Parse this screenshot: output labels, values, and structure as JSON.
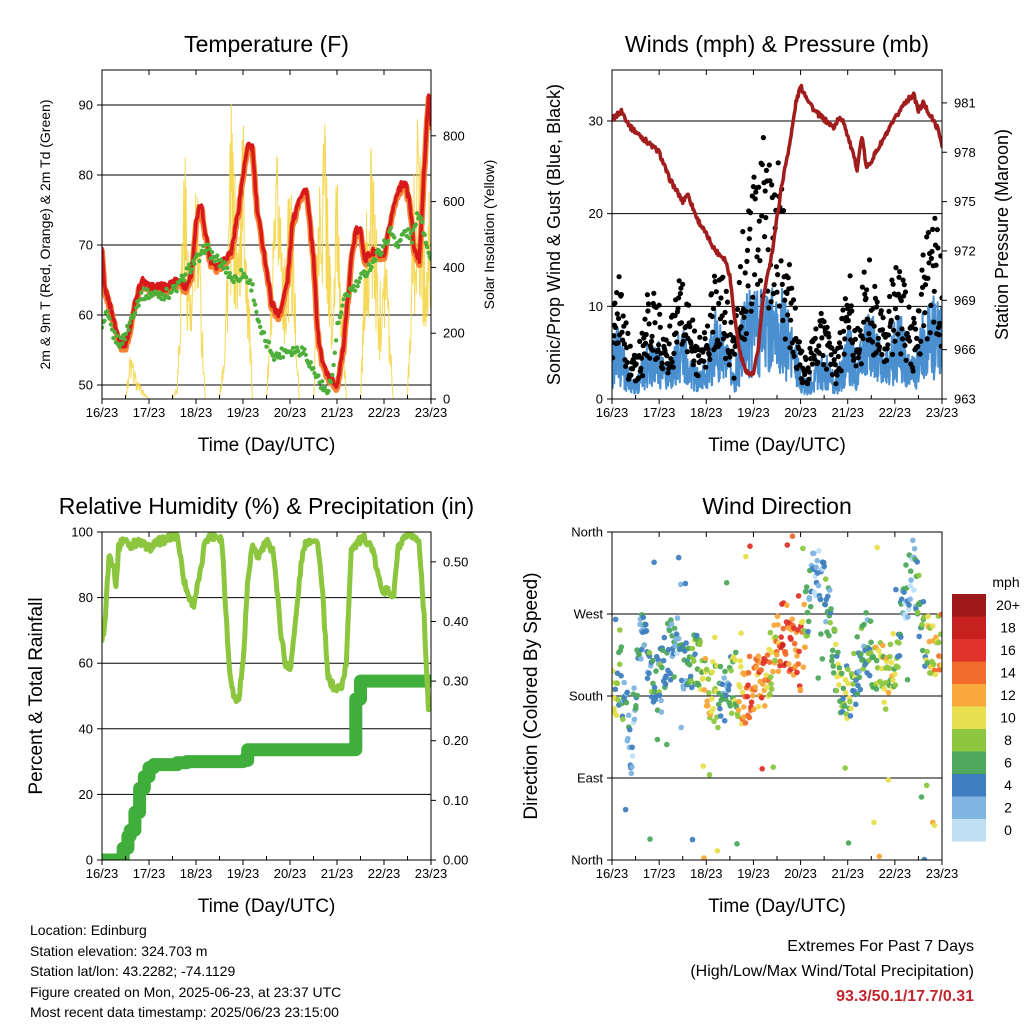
{
  "time_labels": [
    "16/23",
    "17/23",
    "18/23",
    "19/23",
    "20/23",
    "21/23",
    "22/23",
    "23/23"
  ],
  "colors": {
    "temp_2m": "#d7191c",
    "temp_9m": "#f58231",
    "dewpoint": "#4daf3a",
    "solar": "#f5d547",
    "wind_sonic": "#4a90d0",
    "gust": "#000000",
    "pressure": "#a11d1d",
    "rh": "#8cc63f",
    "precip": "#3fae3a"
  },
  "info": {
    "location": "Location: Edinburg",
    "elevation": "Station elevation: 324.703 m",
    "latlon": "Station lat/lon: 43.2282; -74.1129",
    "created": "Figure created on Mon, 2025-06-23, at 23:37 UTC",
    "recent": "Most recent data timestamp: 2025/06/23 23:15:00"
  },
  "extremes": {
    "title": "Extremes For Past 7 Days",
    "subtitle": "(High/Low/Max Wind/Total Precipitation)",
    "values": "93.3/50.1/17.7/0.31"
  },
  "chart_data": [
    {
      "type": "line",
      "title": "Temperature (F)",
      "xlabel": "Time (Day/UTC)",
      "ylabel": "2m & 9m T (Red, Orange) & 2m Td (Green)",
      "y2label": "Solar Insolation (Yellow)",
      "xlim": [
        0,
        7
      ],
      "ylim": [
        48,
        95
      ],
      "y2lim": [
        0,
        1000
      ],
      "yticks": [
        50,
        60,
        70,
        80,
        90
      ],
      "y2ticks": [
        0,
        200,
        400,
        600,
        800
      ],
      "grid": true,
      "series": [
        {
          "key": "temp",
          "x": [
            0,
            0.05,
            0.15,
            0.3,
            0.4,
            0.5,
            0.6,
            0.7,
            0.85,
            1.0,
            1.2,
            1.4,
            1.6,
            1.8,
            1.9,
            2.0,
            2.1,
            2.2,
            2.3,
            2.45,
            2.6,
            2.75,
            2.9,
            3.0,
            3.1,
            3.2,
            3.3,
            3.45,
            3.6,
            3.75,
            3.85,
            3.95,
            4.05,
            4.2,
            4.35,
            4.5,
            4.55,
            4.6,
            4.7,
            4.85,
            5.0,
            5.15,
            5.3,
            5.4,
            5.5,
            5.6,
            5.75,
            5.85,
            6.0,
            6.15,
            6.3,
            6.45,
            6.55,
            6.65,
            6.75,
            6.85,
            6.95,
            7.0
          ],
          "y": [
            69,
            64,
            62,
            58,
            56,
            56,
            58,
            62,
            65,
            64,
            64,
            64,
            65,
            64,
            66,
            73,
            76,
            72,
            68,
            67,
            68,
            69,
            75,
            80,
            84,
            84,
            75,
            69,
            62,
            60,
            62,
            65,
            73,
            77,
            78,
            68,
            62,
            57,
            53,
            51,
            50,
            56,
            68,
            72,
            72,
            68,
            69,
            69,
            68,
            74,
            78,
            79,
            76,
            69,
            68,
            80,
            92,
            87
          ]
        },
        {
          "key": "dewpoint",
          "x": [
            0,
            0.1,
            0.25,
            0.4,
            0.55,
            0.7,
            0.85,
            1.0,
            1.2,
            1.4,
            1.6,
            1.8,
            2.0,
            2.1,
            2.2,
            2.4,
            2.6,
            2.8,
            3.0,
            3.2,
            3.35,
            3.5,
            3.7,
            3.9,
            4.1,
            4.3,
            4.5,
            4.6,
            4.75,
            4.9,
            5.0,
            5.2,
            5.4,
            5.6,
            5.8,
            6.0,
            6.15,
            6.3,
            6.45,
            6.6,
            6.75,
            6.85,
            7.0
          ],
          "y": [
            58,
            60,
            57,
            56,
            58,
            61,
            63,
            63,
            63,
            63,
            64,
            66,
            68,
            68,
            70,
            68,
            67,
            65,
            66,
            64,
            58,
            56,
            54,
            55,
            55,
            55,
            52,
            51,
            49,
            51,
            58,
            63,
            64,
            66,
            68,
            70,
            72,
            70,
            72,
            71,
            75,
            72,
            68
          ]
        },
        {
          "key": "solar",
          "x": [
            0,
            0.3,
            0.5,
            0.6,
            0.75,
            0.9,
            1.0,
            1.3,
            1.5,
            1.6,
            1.75,
            1.9,
            2.0,
            2.2,
            2.3,
            2.5,
            2.6,
            2.75,
            2.9,
            3.0,
            3.2,
            3.3,
            3.5,
            3.6,
            3.75,
            3.9,
            4.0,
            4.2,
            4.3,
            4.5,
            4.6,
            4.75,
            4.9,
            5.0,
            5.2,
            5.3,
            5.5,
            5.6,
            5.75,
            5.9,
            6.0,
            6.2,
            6.3,
            6.5,
            6.6,
            6.75,
            6.9,
            7.0
          ],
          "y": [
            0,
            0,
            0,
            150,
            60,
            20,
            0,
            0,
            0,
            50,
            850,
            300,
            800,
            0,
            0,
            0,
            200,
            900,
            500,
            950,
            0,
            0,
            0,
            350,
            850,
            400,
            750,
            0,
            0,
            0,
            700,
            920,
            250,
            800,
            0,
            0,
            0,
            500,
            850,
            300,
            650,
            0,
            0,
            0,
            600,
            940,
            400,
            820
          ]
        }
      ]
    },
    {
      "type": "scatter",
      "title": "Winds (mph) & Pressure (mb)",
      "xlabel": "Time (Day/UTC)",
      "ylabel": "Sonic/Prop Wind & Gust (Blue, Black)",
      "y2label": "Station Pressure (Maroon)",
      "xlim": [
        0,
        7
      ],
      "ylim": [
        0,
        35.5
      ],
      "y2lim": [
        963,
        983
      ],
      "yticks": [
        0,
        10,
        20,
        30
      ],
      "y2ticks": [
        963,
        966,
        969,
        972,
        975,
        978,
        981
      ],
      "grid": true,
      "series": [
        {
          "key": "pressure",
          "x": [
            0,
            0.2,
            0.4,
            0.6,
            0.8,
            1.0,
            1.2,
            1.4,
            1.5,
            1.6,
            1.8,
            2.0,
            2.1,
            2.2,
            2.4,
            2.5,
            2.6,
            2.7,
            2.8,
            2.9,
            3.0,
            3.1,
            3.2,
            3.4,
            3.6,
            3.8,
            3.9,
            4.0,
            4.2,
            4.3,
            4.5,
            4.7,
            4.8,
            4.9,
            5.0,
            5.2,
            5.3,
            5.4,
            5.5,
            5.6,
            5.7,
            5.9,
            6.0,
            6.2,
            6.4,
            6.5,
            6.6,
            6.8,
            6.9,
            7.0
          ],
          "y": [
            980,
            980.5,
            979.5,
            979,
            978.5,
            978,
            976.5,
            975.5,
            975,
            975.5,
            974,
            973,
            972.5,
            972,
            971.5,
            970.5,
            968,
            966,
            965,
            964.5,
            964.5,
            966,
            969,
            972,
            976,
            979,
            981,
            982,
            981,
            980.5,
            980,
            979.5,
            980,
            980,
            979,
            977,
            979,
            977,
            977.5,
            978,
            978.5,
            979.5,
            980,
            981,
            981.5,
            980.5,
            981,
            980,
            979.5,
            978.5
          ]
        },
        {
          "key": "wind_env",
          "x": [
            0,
            0.1,
            0.2,
            0.35,
            0.5,
            0.65,
            0.8,
            1.0,
            1.15,
            1.3,
            1.45,
            1.6,
            1.8,
            2.0,
            2.2,
            2.4,
            2.6,
            2.8,
            3.0,
            3.1,
            3.2,
            3.3,
            3.4,
            3.5,
            3.6,
            3.8,
            4.0,
            4.15,
            4.3,
            4.45,
            4.6,
            4.75,
            4.9,
            5.0,
            5.1,
            5.2,
            5.35,
            5.5,
            5.65,
            5.8,
            5.95,
            6.1,
            6.25,
            6.4,
            6.55,
            6.7,
            6.85,
            7.0
          ],
          "y": [
            5,
            8,
            6,
            3,
            2,
            4,
            7,
            6,
            3,
            5,
            8,
            6,
            3,
            4,
            9,
            6,
            3,
            10,
            12,
            11,
            13,
            11,
            12,
            10,
            11,
            8,
            3,
            2,
            4,
            5,
            4,
            2,
            5,
            8,
            6,
            4,
            8,
            9,
            6,
            5,
            7,
            9,
            6,
            4,
            8,
            11,
            10,
            9
          ]
        },
        {
          "key": "gust_env",
          "x": [
            0,
            0.1,
            0.2,
            0.35,
            0.5,
            0.65,
            0.8,
            1.0,
            1.15,
            1.3,
            1.45,
            1.6,
            1.8,
            2.0,
            2.2,
            2.4,
            2.6,
            2.8,
            3.0,
            3.1,
            3.2,
            3.3,
            3.4,
            3.5,
            3.6,
            3.8,
            4.0,
            4.15,
            4.3,
            4.45,
            4.6,
            4.75,
            4.9,
            5.0,
            5.1,
            5.2,
            5.35,
            5.5,
            5.65,
            5.8,
            5.95,
            6.1,
            6.25,
            6.4,
            6.55,
            6.7,
            6.85,
            7.0
          ],
          "y": [
            11,
            16,
            12,
            6,
            4,
            7,
            12,
            10,
            6,
            9,
            13,
            11,
            6,
            7,
            15,
            12,
            6,
            18,
            22,
            24,
            26,
            25,
            27,
            24,
            22,
            12,
            5,
            4,
            7,
            9,
            8,
            4,
            9,
            14,
            11,
            7,
            13,
            15,
            10,
            8,
            12,
            14,
            10,
            8,
            13,
            17,
            18,
            15
          ]
        }
      ]
    },
    {
      "type": "line",
      "title": "Relative Humidity (%) & Precipitation (in)",
      "xlabel": "Time (Day/UTC)",
      "ylabel": "Percent & Total Rainfall",
      "xlim": [
        0,
        7
      ],
      "ylim": [
        0,
        100
      ],
      "y2lim": [
        0,
        0.55
      ],
      "yticks": [
        0,
        20,
        40,
        60,
        80,
        100
      ],
      "y2ticks": [
        0.0,
        0.1,
        0.2,
        0.3,
        0.4,
        0.5
      ],
      "y2ticklabels": [
        "0.00",
        "0.10",
        "0.20",
        "0.30",
        "0.40",
        "0.50"
      ],
      "grid": true,
      "series": [
        {
          "key": "rh",
          "x": [
            0,
            0.05,
            0.15,
            0.25,
            0.3,
            0.35,
            0.45,
            0.6,
            0.8,
            1.0,
            1.2,
            1.4,
            1.6,
            1.75,
            1.85,
            1.95,
            2.1,
            2.2,
            2.4,
            2.55,
            2.7,
            2.8,
            2.9,
            3.0,
            3.1,
            3.2,
            3.3,
            3.5,
            3.65,
            3.8,
            3.9,
            4.0,
            4.1,
            4.25,
            4.35,
            4.5,
            4.6,
            4.7,
            4.8,
            4.95,
            5.1,
            5.2,
            5.3,
            5.45,
            5.6,
            5.75,
            5.9,
            6.0,
            6.1,
            6.2,
            6.3,
            6.45,
            6.6,
            6.75,
            6.85,
            6.95,
            7.0
          ],
          "y": [
            68,
            70,
            93,
            90,
            83,
            95,
            98,
            96,
            97,
            95,
            97,
            98,
            99,
            85,
            80,
            78,
            88,
            98,
            99,
            98,
            60,
            50,
            48,
            60,
            85,
            96,
            92,
            97,
            94,
            70,
            60,
            58,
            70,
            92,
            97,
            98,
            96,
            80,
            56,
            52,
            53,
            60,
            95,
            97,
            98,
            95,
            85,
            82,
            82,
            80,
            95,
            98,
            99,
            97,
            75,
            45,
            50
          ]
        },
        {
          "key": "precip",
          "x": [
            0,
            0.3,
            0.45,
            0.55,
            0.6,
            0.7,
            0.8,
            0.9,
            1.0,
            1.1,
            1.3,
            1.6,
            1.8,
            2.0,
            2.5,
            3.0,
            3.1,
            3.2,
            3.6,
            4.0,
            4.5,
            5.0,
            5.3,
            5.4,
            5.5,
            5.7,
            6.0,
            6.5,
            7.0
          ],
          "y": [
            0,
            0,
            0.02,
            0.04,
            0.05,
            0.08,
            0.12,
            0.14,
            0.155,
            0.16,
            0.16,
            0.163,
            0.165,
            0.165,
            0.165,
            0.167,
            0.185,
            0.185,
            0.185,
            0.185,
            0.185,
            0.185,
            0.185,
            0.27,
            0.3,
            0.3,
            0.3,
            0.3,
            0.3
          ]
        }
      ]
    },
    {
      "type": "scatter",
      "title": "Wind Direction",
      "xlabel": "Time (Day/UTC)",
      "ylabel": "Direction (Colored By Speed)",
      "xlim": [
        0,
        7
      ],
      "ylim": [
        0,
        360
      ],
      "yticks": [
        0,
        90,
        180,
        270,
        360
      ],
      "yticklabels": [
        "North",
        "East",
        "South",
        "West",
        "North"
      ],
      "grid": true,
      "colorbar": {
        "title": "mph",
        "labels": [
          "20+",
          "18",
          "16",
          "14",
          "12",
          "10",
          "8",
          "6",
          "4",
          "2",
          "0"
        ],
        "colors": [
          "#9e1a1a",
          "#c7211f",
          "#e0332a",
          "#f26c2b",
          "#f9a83a",
          "#e8e04e",
          "#8dc73f",
          "#4ea95c",
          "#3f7fc0",
          "#7fb5e0",
          "#bfe0f4"
        ]
      },
      "series": [
        {
          "key": "dir",
          "x": [
            0,
            0.2,
            0.4,
            0.6,
            0.8,
            1.0,
            1.2,
            1.4,
            1.6,
            1.8,
            2.0,
            2.2,
            2.4,
            2.6,
            2.8,
            3.0,
            3.2,
            3.4,
            3.6,
            3.8,
            4.0,
            4.2,
            4.4,
            4.6,
            4.8,
            5.0,
            5.2,
            5.4,
            5.6,
            5.8,
            6.0,
            6.2,
            6.4,
            6.6,
            6.8,
            7.0
          ],
          "y": [
            180,
            200,
            120,
            240,
            215,
            195,
            230,
            240,
            210,
            225,
            190,
            180,
            180,
            195,
            180,
            200,
            200,
            220,
            250,
            240,
            220,
            300,
            315,
            270,
            190,
            180,
            210,
            240,
            215,
            200,
            220,
            290,
            320,
            250,
            230,
            240
          ],
          "speed": [
            8,
            5,
            3,
            4,
            6,
            5,
            4,
            3,
            5,
            7,
            10,
            9,
            3,
            8,
            12,
            13,
            14,
            9,
            15,
            14,
            14,
            3,
            3,
            5,
            7,
            8,
            6,
            5,
            9,
            10,
            8,
            3,
            3,
            6,
            10,
            11
          ]
        }
      ]
    }
  ]
}
